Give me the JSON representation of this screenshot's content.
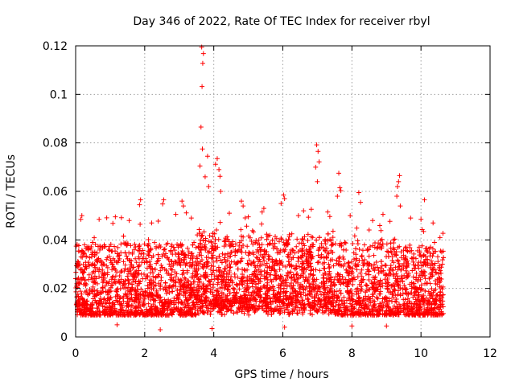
{
  "chart_data": {
    "type": "scatter",
    "title": "Day 346 of 2022, Rate Of TEC Index for receiver rbyl",
    "xlabel": "GPS time / hours",
    "ylabel": "ROTI / TECUs",
    "xlim": [
      0,
      12
    ],
    "ylim": [
      0,
      0.12
    ],
    "x_ticks": [
      0,
      2,
      4,
      6,
      8,
      10,
      12
    ],
    "x_tick_labels": [
      "0",
      "2",
      "4",
      "6",
      "8",
      "10",
      "12"
    ],
    "y_ticks": [
      0,
      0.02,
      0.04,
      0.06,
      0.08,
      0.1,
      0.12
    ],
    "y_tick_labels": [
      "0",
      "0.02",
      "0.04",
      "0.06",
      "0.08",
      "0.1",
      "0.12"
    ],
    "grid": true,
    "marker": "+",
    "series": [
      {
        "name": "ROTI",
        "color": "#ff0000",
        "data_extent_hours": [
          0,
          10.65
        ],
        "typical_range": [
          0.005,
          0.035
        ],
        "points": [
          [
            3.65,
            0.1195
          ],
          [
            3.7,
            0.1168
          ],
          [
            3.68,
            0.1128
          ],
          [
            3.66,
            0.1032
          ],
          [
            3.63,
            0.0865
          ],
          [
            3.67,
            0.0775
          ],
          [
            3.82,
            0.0745
          ],
          [
            4.1,
            0.0735
          ],
          [
            4.05,
            0.0712
          ],
          [
            4.15,
            0.069
          ],
          [
            3.6,
            0.0705
          ],
          [
            3.75,
            0.066
          ],
          [
            4.18,
            0.0662
          ],
          [
            3.85,
            0.062
          ],
          [
            4.2,
            0.06
          ],
          [
            6.98,
            0.0792
          ],
          [
            7.02,
            0.0765
          ],
          [
            7.05,
            0.0722
          ],
          [
            6.95,
            0.07
          ],
          [
            7.0,
            0.064
          ],
          [
            7.62,
            0.0675
          ],
          [
            7.65,
            0.0615
          ],
          [
            7.68,
            0.0603
          ],
          [
            7.58,
            0.058
          ],
          [
            9.38,
            0.0665
          ],
          [
            9.35,
            0.064
          ],
          [
            9.32,
            0.062
          ],
          [
            9.3,
            0.058
          ],
          [
            9.4,
            0.054
          ],
          [
            10.1,
            0.0565
          ],
          [
            8.2,
            0.0595
          ],
          [
            8.25,
            0.0555
          ],
          [
            6.02,
            0.0585
          ],
          [
            6.05,
            0.057
          ],
          [
            5.95,
            0.055
          ],
          [
            4.8,
            0.056
          ],
          [
            4.85,
            0.054
          ],
          [
            5.45,
            0.053
          ],
          [
            5.4,
            0.0515
          ],
          [
            1.88,
            0.0565
          ],
          [
            1.85,
            0.0545
          ],
          [
            2.55,
            0.0565
          ],
          [
            2.52,
            0.0548
          ],
          [
            3.08,
            0.056
          ],
          [
            3.12,
            0.054
          ],
          [
            0.18,
            0.05
          ],
          [
            0.15,
            0.0485
          ],
          [
            0.68,
            0.0485
          ],
          [
            1.15,
            0.0495
          ],
          [
            1.55,
            0.048
          ],
          [
            2.2,
            0.047
          ],
          [
            2.9,
            0.0505
          ],
          [
            3.35,
            0.049
          ],
          [
            4.45,
            0.051
          ],
          [
            5.0,
            0.0495
          ],
          [
            6.45,
            0.05
          ],
          [
            6.6,
            0.052
          ],
          [
            7.3,
            0.0515
          ],
          [
            7.95,
            0.05
          ],
          [
            8.6,
            0.048
          ],
          [
            8.9,
            0.0505
          ],
          [
            9.7,
            0.049
          ],
          [
            10.0,
            0.0485
          ],
          [
            10.35,
            0.047
          ],
          [
            10.55,
            0.041
          ],
          [
            10.6,
            0.035
          ],
          [
            10.62,
            0.03
          ],
          [
            2.45,
            0.003
          ],
          [
            3.95,
            0.0035
          ],
          [
            6.05,
            0.004
          ],
          [
            8.0,
            0.0045
          ],
          [
            1.2,
            0.005
          ],
          [
            9.0,
            0.0045
          ]
        ]
      }
    ]
  }
}
